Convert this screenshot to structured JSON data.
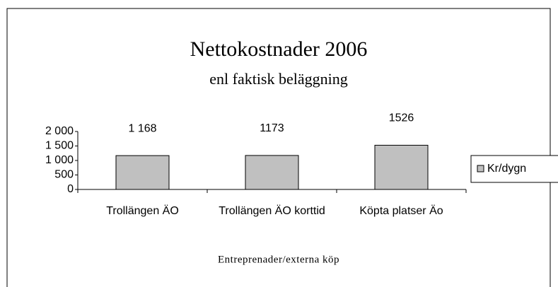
{
  "chart_data": {
    "type": "bar",
    "title": "Nettokostnader 2006",
    "subtitle": "enl faktisk beläggning",
    "x_label": "Entreprenader/externa köp",
    "categories": [
      "Trollängen ÄO",
      "Trollängen ÄO korttid",
      "Köpta platser Äo"
    ],
    "series": [
      {
        "name": "Kr/dygn",
        "color": "#c0c0c0",
        "values": [
          1168,
          1173,
          1526
        ],
        "value_labels": [
          "1 168",
          "1173",
          "1526"
        ]
      }
    ],
    "ylim": [
      0,
      2000
    ],
    "yticks": [
      0,
      500,
      {
        "value": 1000,
        "label": "1 000"
      },
      {
        "value": 1500,
        "label": "1 500"
      },
      {
        "value": 2000,
        "label": "2 000"
      }
    ],
    "grid": false,
    "legend": "right"
  }
}
